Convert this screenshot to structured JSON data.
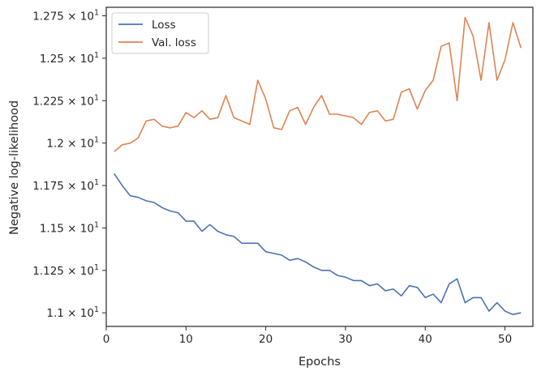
{
  "chart_data": {
    "type": "line",
    "xlabel": "Epochs",
    "ylabel": "Negative log-likelihood",
    "xlim": [
      0,
      53.5
    ],
    "ylim": [
      10.92,
      12.8
    ],
    "x_ticks": [
      0,
      10,
      20,
      30,
      40,
      50
    ],
    "y_ticks": [
      {
        "value": 11.0,
        "mantissa": "1.1"
      },
      {
        "value": 11.25,
        "mantissa": "1.125"
      },
      {
        "value": 11.5,
        "mantissa": "1.15"
      },
      {
        "value": 11.75,
        "mantissa": "1.175"
      },
      {
        "value": 12.0,
        "mantissa": "1.2"
      },
      {
        "value": 12.25,
        "mantissa": "1.225"
      },
      {
        "value": 12.5,
        "mantissa": "1.25"
      },
      {
        "value": 12.75,
        "mantissa": "1.275"
      }
    ],
    "tick_exponent_base": "10",
    "tick_exponent": "1",
    "tick_times": "×",
    "grid": false,
    "legend_position": "top-left",
    "x": [
      1,
      2,
      3,
      4,
      5,
      6,
      7,
      8,
      9,
      10,
      11,
      12,
      13,
      14,
      15,
      16,
      17,
      18,
      19,
      20,
      21,
      22,
      23,
      24,
      25,
      26,
      27,
      28,
      29,
      30,
      31,
      32,
      33,
      34,
      35,
      36,
      37,
      38,
      39,
      40,
      41,
      42,
      43,
      44,
      45,
      46,
      47,
      48,
      49,
      50,
      51,
      52
    ],
    "series": [
      {
        "name": "Loss",
        "color": "#4c72b0",
        "values": [
          11.82,
          11.75,
          11.69,
          11.68,
          11.66,
          11.65,
          11.62,
          11.6,
          11.59,
          11.54,
          11.54,
          11.48,
          11.52,
          11.48,
          11.46,
          11.45,
          11.41,
          11.41,
          11.41,
          11.36,
          11.35,
          11.34,
          11.31,
          11.32,
          11.3,
          11.27,
          11.25,
          11.25,
          11.22,
          11.21,
          11.19,
          11.19,
          11.16,
          11.17,
          11.13,
          11.14,
          11.1,
          11.16,
          11.15,
          11.09,
          11.11,
          11.06,
          11.17,
          11.2,
          11.06,
          11.09,
          11.09,
          11.01,
          11.06,
          11.01,
          10.99,
          11.0
        ]
      },
      {
        "name": "Val. loss",
        "color": "#dd8452",
        "values": [
          11.95,
          11.99,
          12.0,
          12.03,
          12.13,
          12.14,
          12.1,
          12.09,
          12.1,
          12.18,
          12.15,
          12.19,
          12.14,
          12.15,
          12.28,
          12.15,
          12.13,
          12.11,
          12.37,
          12.26,
          12.09,
          12.08,
          12.19,
          12.21,
          12.11,
          12.21,
          12.28,
          12.17,
          12.17,
          12.16,
          12.15,
          12.11,
          12.18,
          12.19,
          12.13,
          12.14,
          12.3,
          12.32,
          12.2,
          12.31,
          12.37,
          12.57,
          12.59,
          12.25,
          12.74,
          12.63,
          12.37,
          12.71,
          12.37,
          12.49,
          12.71,
          12.56
        ]
      }
    ]
  }
}
